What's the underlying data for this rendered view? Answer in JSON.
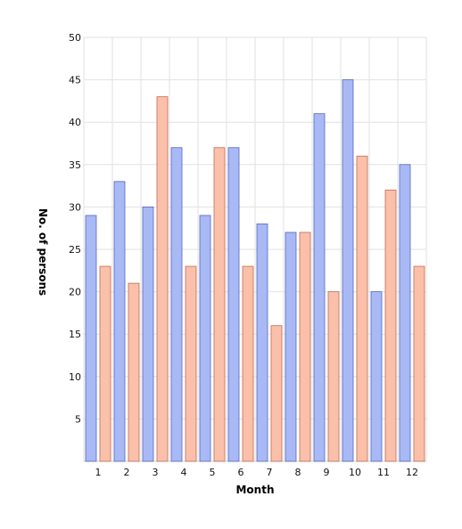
{
  "chart_data": {
    "type": "bar",
    "title": "",
    "xlabel": "Month",
    "ylabel": "No. of persons",
    "categories": [
      "1",
      "2",
      "3",
      "4",
      "5",
      "6",
      "7",
      "8",
      "9",
      "10",
      "11",
      "12"
    ],
    "series": [
      {
        "values": [
          29,
          33,
          30,
          37,
          29,
          37,
          28,
          27,
          41,
          45,
          20,
          35
        ],
        "color": "#a8b9f5",
        "stroke": "#5566bb"
      },
      {
        "values": [
          23,
          21,
          43,
          23,
          37,
          23,
          16,
          27,
          20,
          36,
          32,
          23
        ],
        "color": "#fbc0aa",
        "stroke": "#c06a55"
      }
    ],
    "ylim": [
      0,
      50
    ],
    "yticks": [
      5,
      10,
      15,
      20,
      25,
      30,
      35,
      40,
      45,
      50
    ],
    "grid": true,
    "legend": "none"
  }
}
